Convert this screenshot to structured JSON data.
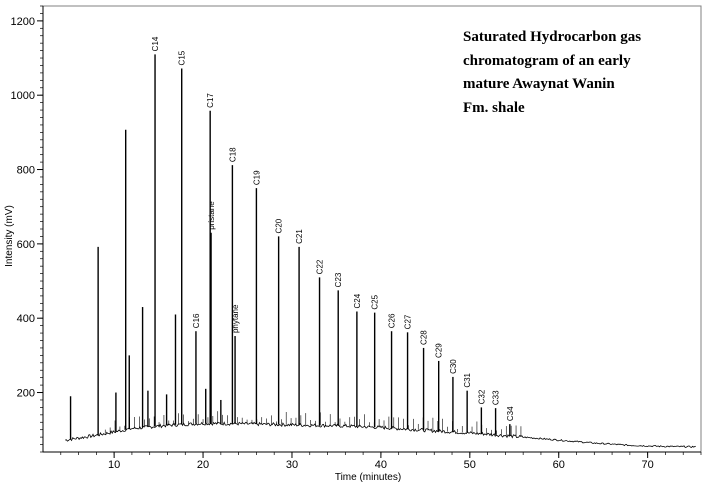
{
  "chart_data": {
    "type": "line",
    "xlabel": "Time (minutes)",
    "ylabel": "Intensity (mV)",
    "xlim": [
      2,
      76
    ],
    "ylim": [
      40,
      1240
    ],
    "x_ticks": [
      "10",
      "20",
      "30",
      "40",
      "50",
      "60",
      "70"
    ],
    "x_tick_values": [
      10,
      20,
      30,
      40,
      50,
      60,
      70
    ],
    "y_ticks": [
      "200",
      "400",
      "600",
      "800",
      "1000",
      "1200"
    ],
    "y_tick_values": [
      200,
      400,
      600,
      800,
      1000,
      1200
    ],
    "grid": false,
    "legend": "none",
    "line_color": "#000000",
    "annotation": {
      "lines": [
        "Saturated Hydrocarbon gas",
        "chromatogram of an early",
        "mature Awaynat Wanin",
        "Fm. shale"
      ]
    },
    "baseline": {
      "x": [
        4.5,
        8,
        12,
        16,
        20,
        24,
        28,
        32,
        36,
        40,
        44,
        48,
        52,
        56,
        60,
        64,
        68,
        72,
        75.5
      ],
      "y": [
        72,
        85,
        103,
        112,
        117,
        116,
        114,
        112,
        110,
        106,
        100,
        94,
        88,
        80,
        72,
        64,
        58,
        55,
        54
      ]
    },
    "peaks": [
      {
        "label": "",
        "x": 5.1,
        "y": 190
      },
      {
        "label": "",
        "x": 8.2,
        "y": 592
      },
      {
        "label": "",
        "x": 10.2,
        "y": 200
      },
      {
        "label": "",
        "x": 11.3,
        "y": 907
      },
      {
        "label": "",
        "x": 11.7,
        "y": 300
      },
      {
        "label": "",
        "x": 13.2,
        "y": 430
      },
      {
        "label": "",
        "x": 13.8,
        "y": 205
      },
      {
        "label": "C14",
        "x": 14.6,
        "y": 1110
      },
      {
        "label": "",
        "x": 15.9,
        "y": 195
      },
      {
        "label": "",
        "x": 16.9,
        "y": 410
      },
      {
        "label": "C15",
        "x": 17.6,
        "y": 1072
      },
      {
        "label": "C16",
        "x": 19.2,
        "y": 365
      },
      {
        "label": "",
        "x": 20.3,
        "y": 210
      },
      {
        "label": "C17",
        "x": 20.8,
        "y": 958
      },
      {
        "label": "pristane",
        "x": 20.9,
        "y": 630
      },
      {
        "label": "",
        "x": 22.0,
        "y": 180
      },
      {
        "label": "C18",
        "x": 23.3,
        "y": 812
      },
      {
        "label": "phytane",
        "x": 23.6,
        "y": 352
      },
      {
        "label": "C19",
        "x": 26.0,
        "y": 750
      },
      {
        "label": "C20",
        "x": 28.5,
        "y": 620
      },
      {
        "label": "C21",
        "x": 30.8,
        "y": 592
      },
      {
        "label": "C22",
        "x": 33.1,
        "y": 510
      },
      {
        "label": "C23",
        "x": 35.2,
        "y": 475
      },
      {
        "label": "C24",
        "x": 37.3,
        "y": 418
      },
      {
        "label": "C25",
        "x": 39.3,
        "y": 415
      },
      {
        "label": "C26",
        "x": 41.2,
        "y": 365
      },
      {
        "label": "C27",
        "x": 43.0,
        "y": 362
      },
      {
        "label": "C28",
        "x": 44.8,
        "y": 320
      },
      {
        "label": "C29",
        "x": 46.5,
        "y": 285
      },
      {
        "label": "C30",
        "x": 48.1,
        "y": 242
      },
      {
        "label": "C31",
        "x": 49.7,
        "y": 205
      },
      {
        "label": "C32",
        "x": 51.3,
        "y": 160
      },
      {
        "label": "C33",
        "x": 52.9,
        "y": 158
      },
      {
        "label": "C34",
        "x": 54.5,
        "y": 115
      }
    ]
  }
}
